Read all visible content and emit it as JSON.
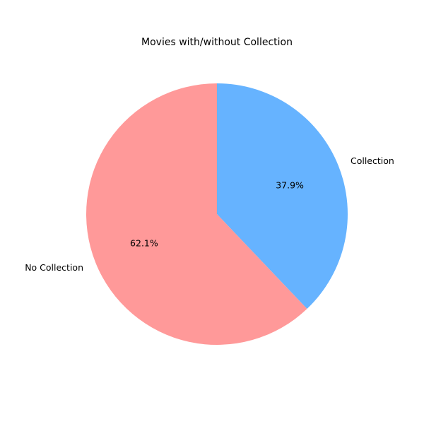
{
  "chart_data": {
    "type": "pie",
    "title": "Movies with/without Collection",
    "slices": [
      {
        "label": "Collection",
        "value": 37.9,
        "pct_label": "37.9%",
        "color": "#66b3ff"
      },
      {
        "label": "No Collection",
        "value": 62.1,
        "pct_label": "62.1%",
        "color": "#ff9999"
      }
    ],
    "start_angle_deg": 90,
    "direction": "clockwise"
  }
}
